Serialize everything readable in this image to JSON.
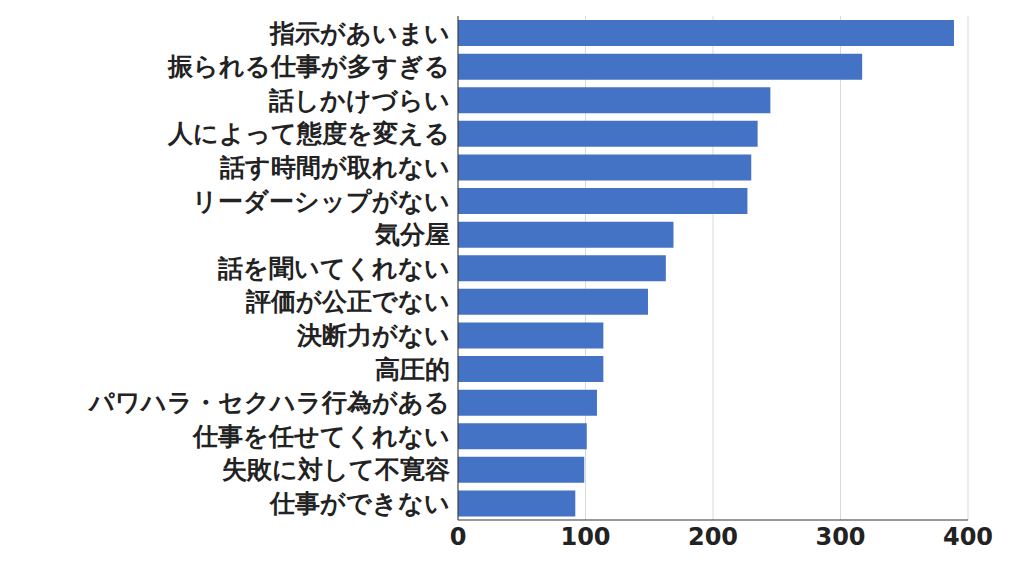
{
  "chart_data": {
    "type": "bar",
    "orientation": "horizontal",
    "categories": [
      "指示があいまい",
      "振られる仕事が多すぎる",
      "話しかけづらい",
      "人によって態度を変える",
      "話す時間が取れない",
      "リーダーシップがない",
      "気分屋",
      "話を聞いてくれない",
      "評価が公正でない",
      "決断力がない",
      "高圧的",
      "パワハラ・セクハラ行為がある",
      "仕事を任せてくれない",
      "失敗に対して不寛容",
      "仕事ができない"
    ],
    "values": [
      389,
      317,
      245,
      235,
      230,
      227,
      169,
      163,
      149,
      114,
      114,
      109,
      101,
      99,
      92
    ],
    "color": "#4472c4",
    "xlim": [
      0,
      400
    ],
    "xticks": [
      0,
      100,
      200,
      300,
      400
    ],
    "grid": true
  }
}
